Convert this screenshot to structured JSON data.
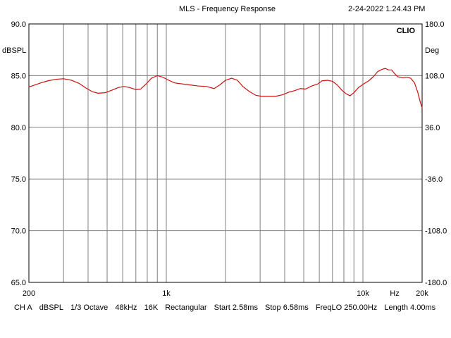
{
  "header": {
    "title": "MLS - Frequency Response",
    "timestamp": "2-24-2022 1.24.43 PM"
  },
  "badge": "CLIO",
  "footer": {
    "items": [
      "CH A",
      "dBSPL",
      "1/3 Octave",
      "48kHz",
      "16K",
      "Rectangular",
      "Start 2.58ms",
      "Stop 6.58ms",
      "FreqLO 250.00Hz",
      "Length 4.00ms"
    ]
  },
  "chart_data": {
    "type": "line",
    "title": "MLS - Frequency Response",
    "xlabel": "Hz",
    "ylabel": "dBSPL",
    "y2label": "Deg",
    "xscale": "log",
    "xlim": [
      200,
      20000
    ],
    "ylim": [
      65,
      90
    ],
    "y2lim": [
      -180,
      180
    ],
    "grid": true,
    "x_tick_labels": [
      "200",
      "1k",
      "10k",
      "20k"
    ],
    "y_ticks": [
      "90.0",
      "85.0",
      "80.0",
      "75.0",
      "70.0",
      "65.0"
    ],
    "y2_ticks": [
      "180.0",
      "108.0",
      "36.0",
      "-36.0",
      "-108.0",
      "-180.0"
    ],
    "colors": {
      "curve": "#cc1111",
      "grid": "#808080",
      "background": "#ffffff"
    },
    "series": [
      {
        "color": "#cc1111",
        "points": [
          [
            200,
            83.9
          ],
          [
            215,
            84.1
          ],
          [
            230,
            84.3
          ],
          [
            250,
            84.5
          ],
          [
            275,
            84.65
          ],
          [
            300,
            84.7
          ],
          [
            330,
            84.55
          ],
          [
            360,
            84.25
          ],
          [
            390,
            83.8
          ],
          [
            420,
            83.45
          ],
          [
            450,
            83.3
          ],
          [
            490,
            83.35
          ],
          [
            530,
            83.6
          ],
          [
            570,
            83.85
          ],
          [
            610,
            83.95
          ],
          [
            650,
            83.85
          ],
          [
            700,
            83.65
          ],
          [
            740,
            83.7
          ],
          [
            790,
            84.2
          ],
          [
            840,
            84.75
          ],
          [
            900,
            85.0
          ],
          [
            960,
            84.85
          ],
          [
            1030,
            84.55
          ],
          [
            1100,
            84.3
          ],
          [
            1200,
            84.2
          ],
          [
            1320,
            84.1
          ],
          [
            1450,
            84.0
          ],
          [
            1600,
            83.95
          ],
          [
            1750,
            83.75
          ],
          [
            1870,
            84.1
          ],
          [
            2000,
            84.55
          ],
          [
            2150,
            84.75
          ],
          [
            2300,
            84.55
          ],
          [
            2450,
            83.95
          ],
          [
            2650,
            83.45
          ],
          [
            2850,
            83.1
          ],
          [
            3050,
            83.0
          ],
          [
            3300,
            83.0
          ],
          [
            3600,
            83.0
          ],
          [
            3900,
            83.15
          ],
          [
            4200,
            83.4
          ],
          [
            4500,
            83.55
          ],
          [
            4800,
            83.75
          ],
          [
            5100,
            83.7
          ],
          [
            5500,
            84.0
          ],
          [
            5900,
            84.2
          ],
          [
            6200,
            84.5
          ],
          [
            6600,
            84.55
          ],
          [
            7000,
            84.45
          ],
          [
            7400,
            84.1
          ],
          [
            7800,
            83.6
          ],
          [
            8200,
            83.25
          ],
          [
            8600,
            83.05
          ],
          [
            9000,
            83.35
          ],
          [
            9500,
            83.85
          ],
          [
            10100,
            84.2
          ],
          [
            10700,
            84.5
          ],
          [
            11300,
            84.9
          ],
          [
            11900,
            85.4
          ],
          [
            12500,
            85.6
          ],
          [
            13000,
            85.7
          ],
          [
            13500,
            85.55
          ],
          [
            14000,
            85.55
          ],
          [
            14500,
            85.2
          ],
          [
            15000,
            84.9
          ],
          [
            15800,
            84.8
          ],
          [
            16700,
            84.85
          ],
          [
            17500,
            84.75
          ],
          [
            18300,
            84.3
          ],
          [
            19000,
            83.4
          ],
          [
            19600,
            82.4
          ],
          [
            20000,
            81.9
          ]
        ]
      }
    ]
  }
}
